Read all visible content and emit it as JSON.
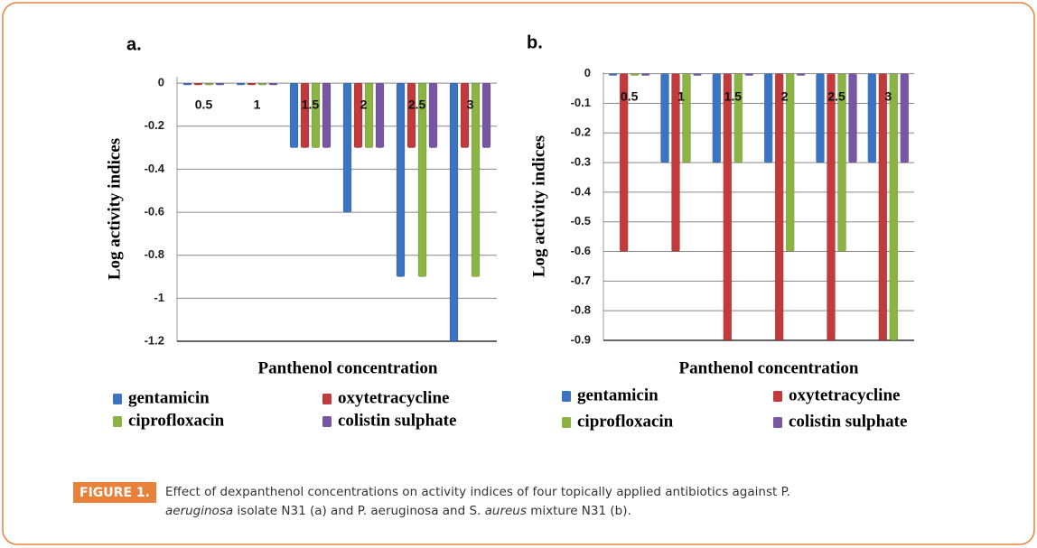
{
  "chart_data": [
    {
      "type": "bar",
      "title": "a.",
      "x_label": "Panthenol concentration",
      "y_label": "Log activity indices",
      "categories": [
        "0.5",
        "1",
        "1.5",
        "2",
        "2.5",
        "3"
      ],
      "series": [
        {
          "name": "gentamicin",
          "color": "#3b74c2",
          "values": [
            0,
            0,
            -0.3,
            -0.6,
            -0.9,
            -1.2
          ]
        },
        {
          "name": "oxytetracycline",
          "color": "#c23a3c",
          "values": [
            0,
            0,
            -0.3,
            -0.3,
            -0.3,
            -0.3
          ]
        },
        {
          "name": "ciprofloxacin",
          "color": "#8cb443",
          "values": [
            0,
            0,
            -0.3,
            -0.3,
            -0.9,
            -0.9
          ]
        },
        {
          "name": "colistin sulphate",
          "color": "#7757a3",
          "values": [
            0,
            0,
            -0.3,
            -0.3,
            -0.3,
            -0.3
          ]
        }
      ],
      "ylim": [
        -1.2,
        0.03
      ],
      "yticks": [
        0,
        -0.2,
        -0.4,
        -0.6,
        -0.8,
        -1,
        -1.2
      ],
      "grid": true
    },
    {
      "type": "bar",
      "title": "b.",
      "x_label": "Panthenol concentration",
      "y_label": "Log activity indices",
      "categories": [
        "0.5",
        "1",
        "1.5",
        "2",
        "2.5",
        "3"
      ],
      "series": [
        {
          "name": "gentamicin",
          "color": "#3b74c2",
          "values": [
            0,
            -0.3,
            -0.3,
            -0.3,
            -0.3,
            -0.3
          ]
        },
        {
          "name": "oxytetracycline",
          "color": "#c23a3c",
          "values": [
            -0.6,
            -0.6,
            -0.9,
            -0.9,
            -0.9,
            -0.9
          ]
        },
        {
          "name": "ciprofloxacin",
          "color": "#8cb443",
          "values": [
            0,
            -0.3,
            -0.3,
            -0.6,
            -0.6,
            -0.9
          ]
        },
        {
          "name": "colistin sulphate",
          "color": "#7757a3",
          "values": [
            0,
            0,
            0,
            0,
            -0.3,
            -0.3
          ]
        }
      ],
      "ylim": [
        -0.9,
        0.005
      ],
      "yticks": [
        0,
        -0.1,
        -0.2,
        -0.3,
        -0.4,
        -0.5,
        -0.6,
        -0.7,
        -0.8,
        -0.9
      ],
      "grid": true
    }
  ],
  "caption": {
    "label": "FIGURE 1.",
    "segments": [
      "Effect of dexpanthenol concentrations on activity indices of four topically applied antibiotics against P.",
      "aeruginosa",
      " isolate N31 (a) and P. aeruginosa and S. ",
      "aureus",
      " mixture N31 (b)."
    ]
  }
}
